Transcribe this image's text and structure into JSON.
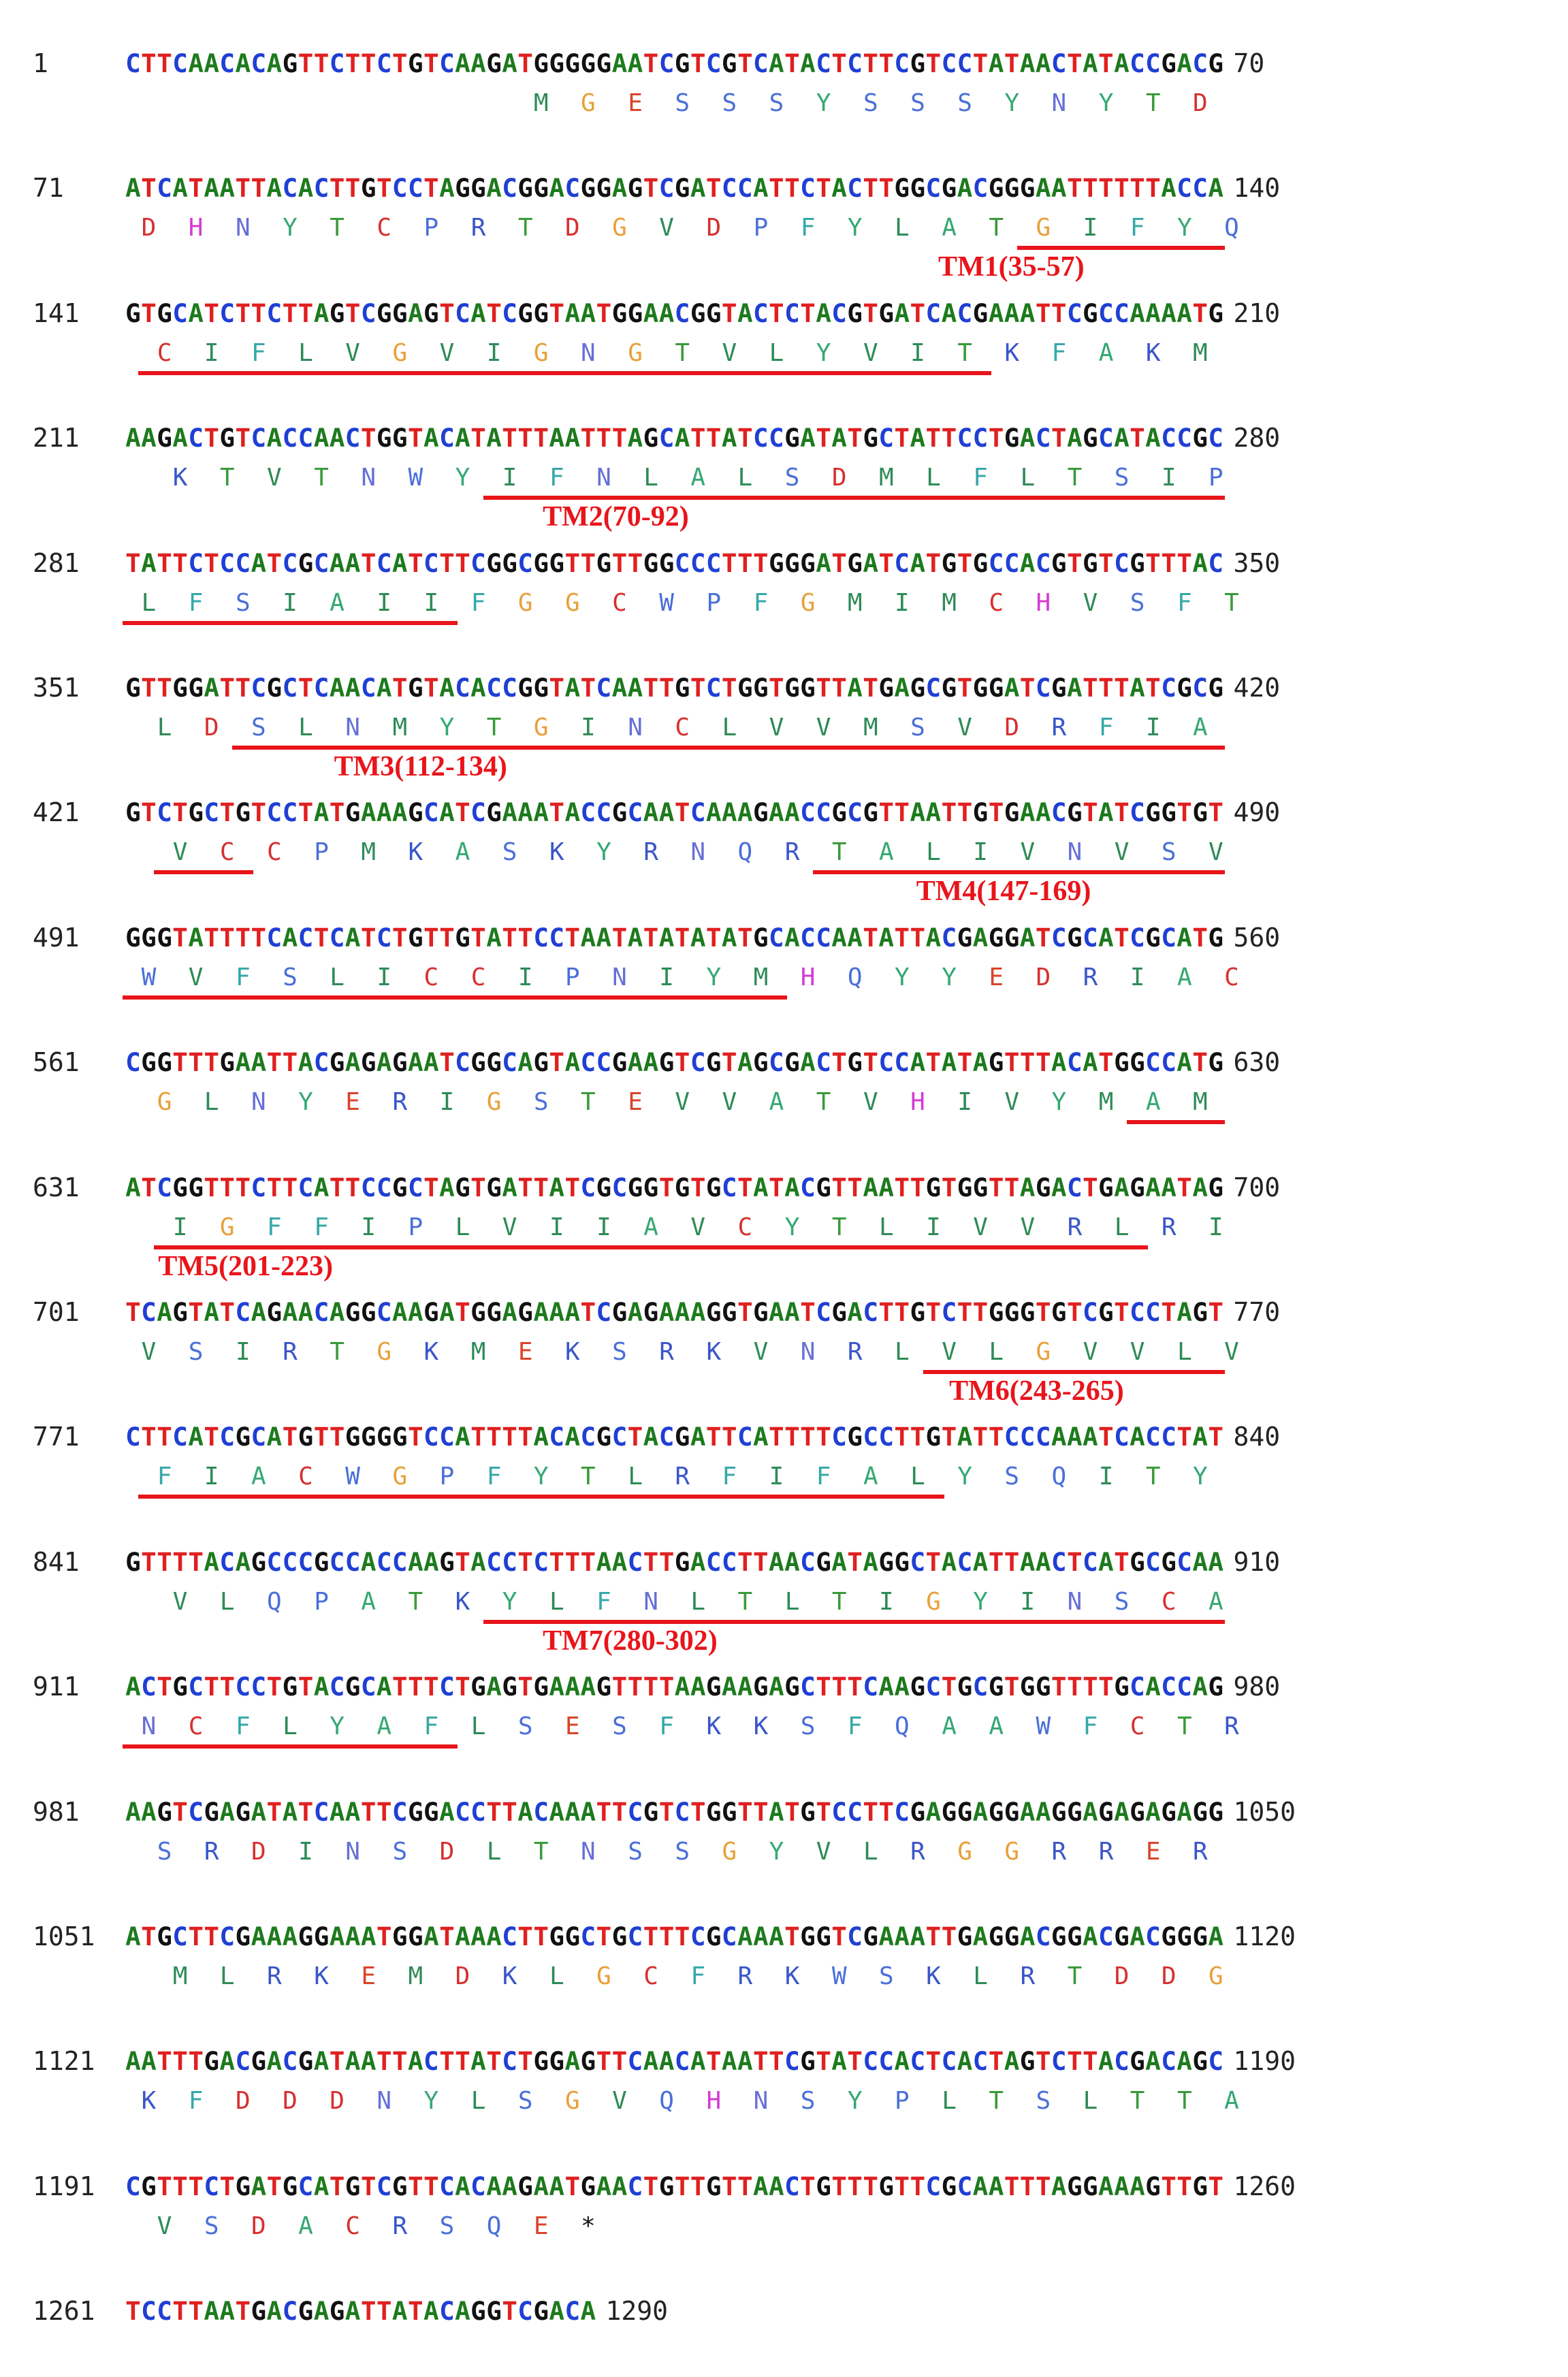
{
  "sequence": {
    "rows": [
      {
        "start": "1",
        "end": "70",
        "nt": "CTTCAACACAGTTCTTCTGTCAAGATGGGGGAATCGTCGTCATACTCTTCGTCCTATAACTATACCGACG",
        "aa": [
          {
            "c": "M",
            "p": 25
          },
          {
            "c": "G",
            "p": 28
          },
          {
            "c": "E",
            "p": 31
          },
          {
            "c": "S",
            "p": 34
          },
          {
            "c": "S",
            "p": 37
          },
          {
            "c": "S",
            "p": 40
          },
          {
            "c": "Y",
            "p": 43
          },
          {
            "c": "S",
            "p": 46
          },
          {
            "c": "S",
            "p": 49
          },
          {
            "c": "S",
            "p": 52
          },
          {
            "c": "Y",
            "p": 55
          },
          {
            "c": "N",
            "p": 58
          },
          {
            "c": "Y",
            "p": 61
          },
          {
            "c": "T",
            "p": 64
          },
          {
            "c": "D",
            "p": 67
          }
        ]
      },
      {
        "start": "71",
        "end": "140",
        "nt": "ATCATAATTACACTTGTCCTAGGACGGACGGAGTCGATCCATTCTACTTGGCGACGGGAATTTTTTACCA",
        "aa": "DHNYTCPRTDGVDPFYLATGIFYQ",
        "tm": [
          {
            "from": 19,
            "to": 23,
            "label": "TM1(35-57)",
            "lx": 0.74
          }
        ]
      },
      {
        "start": "141",
        "end": "210",
        "nt": "GTGCATCTTCTTAGTCGGAGTCATCGGTAATGGAACGGTACTCTACGTGATCACGAAATTCGCCAAAATG",
        "aa": "CIFLVGVIGNGTVLYVITKFAKM",
        "tm": [
          {
            "from": 0,
            "to": 17
          }
        ]
      },
      {
        "start": "211",
        "end": "280",
        "nt": "AAGACTGTCACCAACTGGTACATATTTAATTTAGCATTATCCGATATGCTATTCCTGACTAGCATACCGC",
        "aa": "KTVTNWYIFNLALSDMLFLTSIP",
        "tm": [
          {
            "from": 7,
            "to": 22,
            "label": "TM2(70-92)",
            "lx": 0.38
          }
        ]
      },
      {
        "start": "281",
        "end": "350",
        "nt": "TATTCTCCATCGCAATCATCTTCGGCGGTTGTTGGCCCTTTGGGATGATCATGTGCCACGTGTCGTTTAC",
        "aa": "LFSIAIIFGGCWPFGMIMCHVSFT",
        "tm": [
          {
            "from": 0,
            "to": 6
          }
        ]
      },
      {
        "start": "351",
        "end": "420",
        "nt": "GTTGGATTCGCTCAACATGTACACCGGTATCAATTGTCTGGTGGTTATGAGCGTGGATCGATTTATCGCG",
        "aa": "LDSLNMYTGINCLVVMSVDRFIA",
        "tm": [
          {
            "from": 2,
            "to": 22,
            "label": "TM3(112-134)",
            "lx": 0.19
          }
        ]
      },
      {
        "start": "421",
        "end": "490",
        "nt": "GTCTGCTGTCCTATGAAAGCATCGAAATACCGCAATCAAAGAACCGCGTTAATTGTGAACGTATCGGTGT",
        "aa": "VCCPMKASKYRNQRTALIVNVSV",
        "tm": [
          {
            "from": 0,
            "to": 1
          },
          {
            "from": 14,
            "to": 22,
            "label": "TM4(147-169)",
            "lx": 0.72
          }
        ]
      },
      {
        "start": "491",
        "end": "560",
        "nt": "GGGTATTTTCACTCATCTGTTGTATTCCTAATATATATATGCACCAATATTACGAGGATCGCATCGCATG",
        "aa": "WVFSLICCIPNIYMHQYYEDRIAC",
        "tm": [
          {
            "from": 0,
            "to": 13
          }
        ]
      },
      {
        "start": "561",
        "end": "630",
        "nt": "CGGTTTGAATTACGAGAGAATCGGCAGTACCGAAGTCGTAGCGACTGTCCATATAGTTTACATGGCCATG",
        "aa": "GLNYERIGSTEVVATVHIVYMAM",
        "tm": [
          {
            "from": 21,
            "to": 22
          }
        ]
      },
      {
        "start": "631",
        "end": "700",
        "nt": "ATCGGTTTCTTCATTCCGCTAGTGATTATCGCGGTGTGCTATACGTTAATTGTGGTTAGACTGAGAATAG",
        "aa": "IGFFIPLVIIAVCYTLIVVRLRI",
        "tm": [
          {
            "from": 0,
            "to": 20,
            "label": "TM5(201-223)",
            "lx": 0.03
          }
        ]
      },
      {
        "start": "701",
        "end": "770",
        "nt": "TCAGTATCAGAACAGGCAAGATGGAGAAATCGAGAAAGGTGAATCGACTTGTCTTGGGTGTCGTCCTAGT",
        "aa": "VSIRTGKMEKSRKVNRLVLGVVLV",
        "tm": [
          {
            "from": 17,
            "to": 23,
            "label": "TM6(243-265)",
            "lx": 0.75
          }
        ]
      },
      {
        "start": "771",
        "end": "840",
        "nt": "CTTCATCGCATGTTGGGGTCCATTTTACACGCTACGATTCATTTTCGCCTTGTATTCCCAAATCACCTAT",
        "aa": "FIACWGPFYTLRFIFALYSQITY",
        "tm": [
          {
            "from": 0,
            "to": 16
          }
        ]
      },
      {
        "start": "841",
        "end": "910",
        "nt": "GTTTTACAGCCCGCCACCAAGTACCTCTTTAACTTGACCTTAACGATAGGCTACATTAACTCATGCGCAA",
        "aa": "VLQPATKYLFNLTLTIGYINSCA",
        "tm": [
          {
            "from": 7,
            "to": 22,
            "label": "TM7(280-302)",
            "lx": 0.38
          }
        ]
      },
      {
        "start": "911",
        "end": "980",
        "nt": "ACTGCTTCCTGTACGCATTTCTGAGTGAAAGTTTTAAGAAGAGCTTTCAAGCTGCGTGGTTTTGCACCAG",
        "aa": "NCFLYAFLSESFKKSFQAAWFCTR",
        "tm": [
          {
            "from": 0,
            "to": 6
          }
        ]
      },
      {
        "start": "981",
        "end": "1050",
        "nt": "AAGTCGAGATATCAATTCGGACCTTACAAATTCGTCTGGTTATGTCCTTCGAGGAGGAAGGAGAGAGAGG",
        "aa": "SRDINSDLTNSSGYVLRGGRRER"
      },
      {
        "start": "1051",
        "end": "1120",
        "nt": "ATGCTTCGAAAGGAAATGGATAAACTTGGCTGCTTTCGCAAATGGTCGAAATTGAGGACGGACGACGGGA",
        "aa": "MLRKEMDKLGCFRKWSKLRTDDG"
      },
      {
        "start": "1121",
        "end": "1190",
        "nt": "AATTTGACGACGATAATTACTTATCTGGAGTTCAACATAATTCGTATCCACTCACTAGTCTTACGACAGC",
        "aa": "KFDDDNYLSGVQHNSYPLTSLTTA"
      },
      {
        "start": "1191",
        "end": "1260",
        "nt": "CGTTTCTGATGCATGTCGTTCACAAGAATGAACTGTTGTTAACTGTTTGTTCGCAATTTAGGAAAGTTGT",
        "aa": "VSDACRSQE*"
      },
      {
        "start": "1261",
        "end": "1290",
        "nt": "TCCTTAATGACGAGATTATACAGGTCGACA"
      }
    ]
  },
  "colors": {
    "nt": {
      "A": "#1d7a1d",
      "C": "#1f3fd4",
      "G": "#111111",
      "T": "#e02020"
    },
    "aa": {
      "M": "#2e8b57",
      "G": "#e8a03a",
      "E": "#d9442a",
      "S": "#4a6fd8",
      "Y": "#36a874",
      "T": "#3a9a3a",
      "D": "#d63030",
      "H": "#d53ad3",
      "N": "#6670d6",
      "C": "#d63030",
      "P": "#4a6fd8",
      "R": "#3a56c8",
      "V": "#2e8b57",
      "F": "#36a8a8",
      "L": "#2e8b57",
      "A": "#36a874",
      "I": "#2e8b57",
      "Q": "#4a6fd8",
      "K": "#3a56c8",
      "W": "#4a6fd8",
      "*": "#111111"
    },
    "tm": "#e8151b"
  }
}
